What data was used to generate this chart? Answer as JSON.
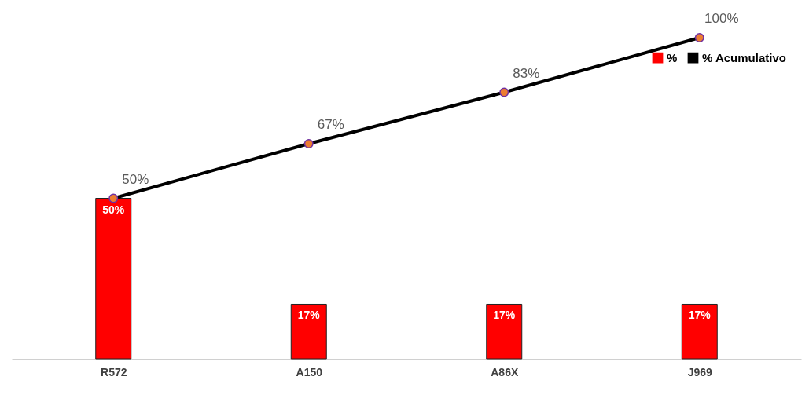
{
  "chart_data": {
    "type": "bar",
    "categories": [
      "R572",
      "A150",
      "A86X",
      "J969"
    ],
    "series": [
      {
        "name": "%",
        "color": "#ff0000",
        "values": [
          50,
          17,
          17,
          17
        ],
        "value_labels": [
          "50%",
          "17%",
          "17%",
          "17%"
        ]
      },
      {
        "name": "% Acumulativo",
        "type": "line",
        "color": "#000000",
        "marker": "circle",
        "values": [
          50,
          67,
          83,
          100
        ],
        "value_labels": [
          "50%",
          "67%",
          "83%",
          "100%"
        ]
      }
    ],
    "legend": "top right",
    "grid": false
  }
}
